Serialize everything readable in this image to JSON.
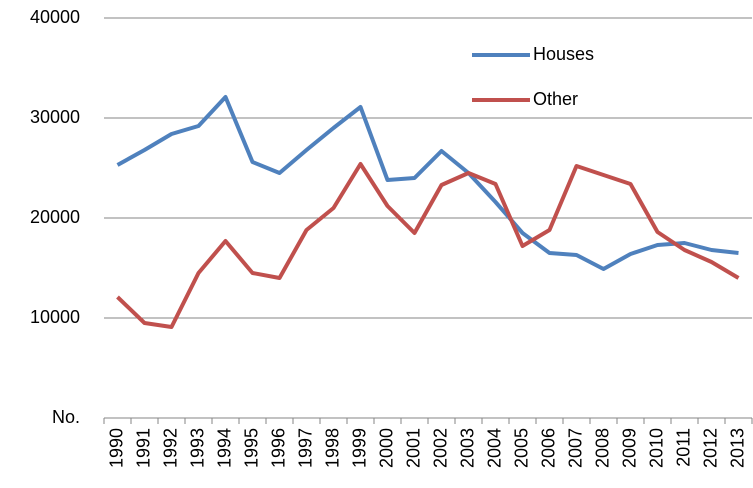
{
  "chart_data": {
    "type": "line",
    "categories": [
      "1990",
      "1991",
      "1992",
      "1993",
      "1994",
      "1995",
      "1996",
      "1997",
      "1998",
      "1999",
      "2000",
      "2001",
      "2002",
      "2003",
      "2004",
      "2005",
      "2006",
      "2007",
      "2008",
      "2009",
      "2010",
      "2011",
      "2012",
      "2013"
    ],
    "series": [
      {
        "name": "Houses",
        "color": "#4f81bd",
        "values": [
          25300,
          26800,
          28400,
          29200,
          32100,
          25600,
          24500,
          26800,
          29000,
          31100,
          23800,
          24000,
          26700,
          24500,
          21600,
          18500,
          16500,
          16300,
          14900,
          16400,
          17300,
          17500,
          16800,
          16500
        ]
      },
      {
        "name": "Other",
        "color": "#c0504d",
        "values": [
          12100,
          9500,
          9100,
          14500,
          17700,
          14500,
          14000,
          18800,
          21000,
          25400,
          21200,
          18500,
          23300,
          24500,
          23400,
          17200,
          18800,
          25200,
          24300,
          23400,
          18600,
          16800,
          15600,
          14000
        ]
      }
    ],
    "ylim": [
      0,
      40000
    ],
    "yticks": [
      {
        "value": 0,
        "label": "No."
      },
      10000,
      20000,
      30000,
      40000
    ],
    "grid": true,
    "legend": "top-right"
  }
}
